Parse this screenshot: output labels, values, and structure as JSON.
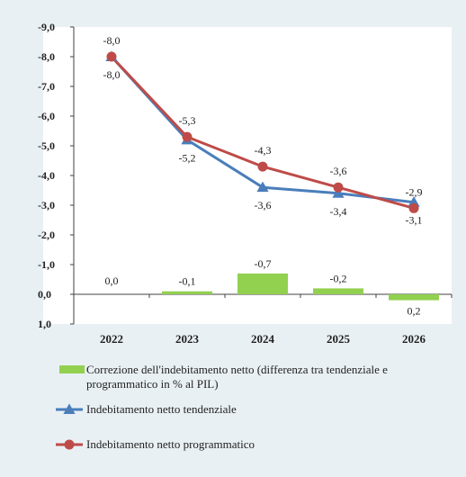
{
  "chart_data": {
    "type": "line",
    "title": "",
    "xlabel": "",
    "ylabel": "",
    "categories": [
      "2022",
      "2023",
      "2024",
      "2025",
      "2026"
    ],
    "ylim": [
      1.0,
      -9.0
    ],
    "y_axis_reversed": true,
    "y_ticks": [
      -9.0,
      -8.0,
      -7.0,
      -6.0,
      -5.0,
      -4.0,
      -3.0,
      -2.0,
      -1.0,
      0.0,
      1.0
    ],
    "y_tick_labels": [
      "-9,0",
      "-8,0",
      "-7,0",
      "-6,0",
      "-5,0",
      "-4,0",
      "-3,0",
      "-2,0",
      "-1,0",
      "0,0",
      "1,0"
    ],
    "grid": false,
    "legend_position": "bottom",
    "series": [
      {
        "name": "Correzione dell'indebitamento netto (differenza tra tendenziale e programmatico in % al PIL)",
        "legend_lines": [
          "Correzione dell'indebitamento netto (differenza tra tendenziale e",
          "programmatico in % al PIL)"
        ],
        "type": "bar",
        "color": "#92d050",
        "values": [
          0.0,
          -0.1,
          -0.7,
          -0.2,
          0.2
        ],
        "labels": [
          "0,0",
          "-0,1",
          "-0,7",
          "-0,2",
          "0,2"
        ]
      },
      {
        "name": "Indebitamento netto tendenziale",
        "type": "line",
        "marker": "triangle",
        "color": "#4a7ebb",
        "values": [
          -8.0,
          -5.2,
          -3.6,
          -3.4,
          -3.1
        ],
        "labels": [
          "-8,0",
          "-5,2",
          "-3,6",
          "-3,4",
          "-3,1"
        ]
      },
      {
        "name": "Indebitamento netto programmatico",
        "type": "line",
        "marker": "circle",
        "color": "#be4b48",
        "values": [
          -8.0,
          -5.3,
          -4.3,
          -3.6,
          -2.9
        ],
        "labels": [
          "-8,0",
          "-5,3",
          "-4,3",
          "-3,6",
          "-2,9"
        ]
      }
    ]
  }
}
